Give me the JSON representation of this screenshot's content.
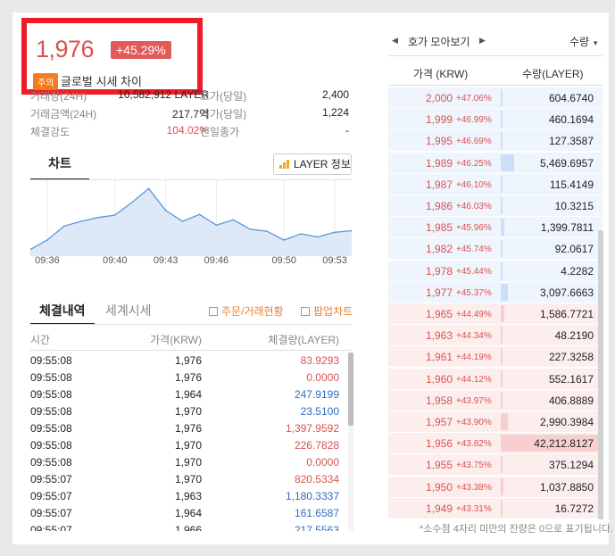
{
  "price": {
    "current": "1,976",
    "change_rate": "+45.29%",
    "warning_badge": "주의",
    "warning_text": "글로벌 시세 차이"
  },
  "stats": {
    "volume_label": "거래량(24H)",
    "volume_value": "10,582,912 LAYER",
    "amount_label": "거래금액(24H)",
    "amount_value": "217.7억",
    "strength_label": "체결강도",
    "strength_value": "104.02%",
    "high_label": "고가(당일)",
    "high_value": "2,400",
    "low_label": "저가(당일)",
    "low_value": "1,224",
    "prev_close_label": "전일종가",
    "prev_close_value": "-"
  },
  "chart_section": {
    "tab_label": "차트",
    "info_button": "LAYER 정보"
  },
  "chart_data": {
    "type": "area",
    "x": [
      "09:35",
      "09:36",
      "09:37",
      "09:38",
      "09:39",
      "09:40",
      "09:41",
      "09:42",
      "09:43",
      "09:44",
      "09:45",
      "09:46",
      "09:47",
      "09:48",
      "09:49",
      "09:50",
      "09:51",
      "09:52",
      "09:53",
      "09:54"
    ],
    "values": [
      1760,
      1790,
      1835,
      1850,
      1862,
      1870,
      1910,
      1955,
      1885,
      1850,
      1872,
      1838,
      1855,
      1825,
      1818,
      1790,
      1810,
      1800,
      1815,
      1820
    ],
    "xticks": [
      "09:36",
      "09:40",
      "09:43",
      "09:46",
      "09:50",
      "09:53"
    ],
    "xlabel": "",
    "ylabel": "",
    "ylim": [
      1750,
      1970
    ],
    "line_color": "#5b95d6",
    "fill_color": "#dde9f7",
    "grid": true
  },
  "trades": {
    "tab_active": "체결내역",
    "tab_inactive": "세계시세",
    "link_order": "주문/거래현황",
    "link_popup": "팝업차트",
    "col_time": "시간",
    "col_price": "가격(KRW)",
    "col_volume": "체결량(LAYER)",
    "rows": [
      {
        "time": "09:55:08",
        "price": "1,976",
        "volume": "83.9293",
        "side": "buy"
      },
      {
        "time": "09:55:08",
        "price": "1,976",
        "volume": "0.0000",
        "side": "buy"
      },
      {
        "time": "09:55:08",
        "price": "1,964",
        "volume": "247.9199",
        "side": "sell"
      },
      {
        "time": "09:55:08",
        "price": "1,970",
        "volume": "23.5100",
        "side": "sell"
      },
      {
        "time": "09:55:08",
        "price": "1,976",
        "volume": "1,397.9592",
        "side": "buy"
      },
      {
        "time": "09:55:08",
        "price": "1,970",
        "volume": "226.7828",
        "side": "buy"
      },
      {
        "time": "09:55:08",
        "price": "1,970",
        "volume": "0.0000",
        "side": "buy"
      },
      {
        "time": "09:55:07",
        "price": "1,970",
        "volume": "820.5334",
        "side": "buy"
      },
      {
        "time": "09:55:07",
        "price": "1,963",
        "volume": "1,180.3337",
        "side": "sell"
      },
      {
        "time": "09:55:07",
        "price": "1,964",
        "volume": "161.6587",
        "side": "sell"
      },
      {
        "time": "09:55:07",
        "price": "1,966",
        "volume": "217.5563",
        "side": "sell"
      }
    ]
  },
  "orderbook": {
    "title": "호가 모아보기",
    "qty_dropdown": "수량",
    "col_price": "가격 (KRW)",
    "col_qty": "수량(LAYER)",
    "asks": [
      {
        "price": "2,000",
        "rate": "+47.06%",
        "qty": "604.6740",
        "ratio": 0.014
      },
      {
        "price": "1,999",
        "rate": "+46.99%",
        "qty": "460.1694",
        "ratio": 0.011
      },
      {
        "price": "1,995",
        "rate": "+46.69%",
        "qty": "127.3587",
        "ratio": 0.003
      },
      {
        "price": "1,989",
        "rate": "+46.25%",
        "qty": "5,469.6957",
        "ratio": 0.13
      },
      {
        "price": "1,987",
        "rate": "+46.10%",
        "qty": "115.4149",
        "ratio": 0.003
      },
      {
        "price": "1,986",
        "rate": "+46.03%",
        "qty": "10.3215",
        "ratio": 0.001
      },
      {
        "price": "1,985",
        "rate": "+45.96%",
        "qty": "1,399.7811",
        "ratio": 0.033
      },
      {
        "price": "1,982",
        "rate": "+45.74%",
        "qty": "92.0617",
        "ratio": 0.002
      },
      {
        "price": "1,978",
        "rate": "+45.44%",
        "qty": "4.2282",
        "ratio": 0.001
      },
      {
        "price": "1,977",
        "rate": "+45.37%",
        "qty": "3,097.6663",
        "ratio": 0.073
      }
    ],
    "bids": [
      {
        "price": "1,965",
        "rate": "+44.49%",
        "qty": "1,586.7721",
        "ratio": 0.038
      },
      {
        "price": "1,963",
        "rate": "+44.34%",
        "qty": "48.2190",
        "ratio": 0.001
      },
      {
        "price": "1,961",
        "rate": "+44.19%",
        "qty": "227.3258",
        "ratio": 0.005
      },
      {
        "price": "1,960",
        "rate": "+44.12%",
        "qty": "552.1617",
        "ratio": 0.013
      },
      {
        "price": "1,958",
        "rate": "+43.97%",
        "qty": "406.8889",
        "ratio": 0.01
      },
      {
        "price": "1,957",
        "rate": "+43.90%",
        "qty": "2,990.3984",
        "ratio": 0.071
      },
      {
        "price": "1,956",
        "rate": "+43.82%",
        "qty": "42,212.8127",
        "ratio": 1.0
      },
      {
        "price": "1,955",
        "rate": "+43.75%",
        "qty": "375.1294",
        "ratio": 0.009
      },
      {
        "price": "1,950",
        "rate": "+43.38%",
        "qty": "1,037.8850",
        "ratio": 0.025
      },
      {
        "price": "1,949",
        "rate": "+43.31%",
        "qty": "16.7272",
        "ratio": 0.001
      }
    ],
    "footnote": "*소수점 4자리 미만의 잔량은 0으로 표기됩니다."
  },
  "colors": {
    "up": "#d9534f",
    "down": "#2f6dbf",
    "highlight": "#ee1c24",
    "warning": "#f47b20"
  }
}
